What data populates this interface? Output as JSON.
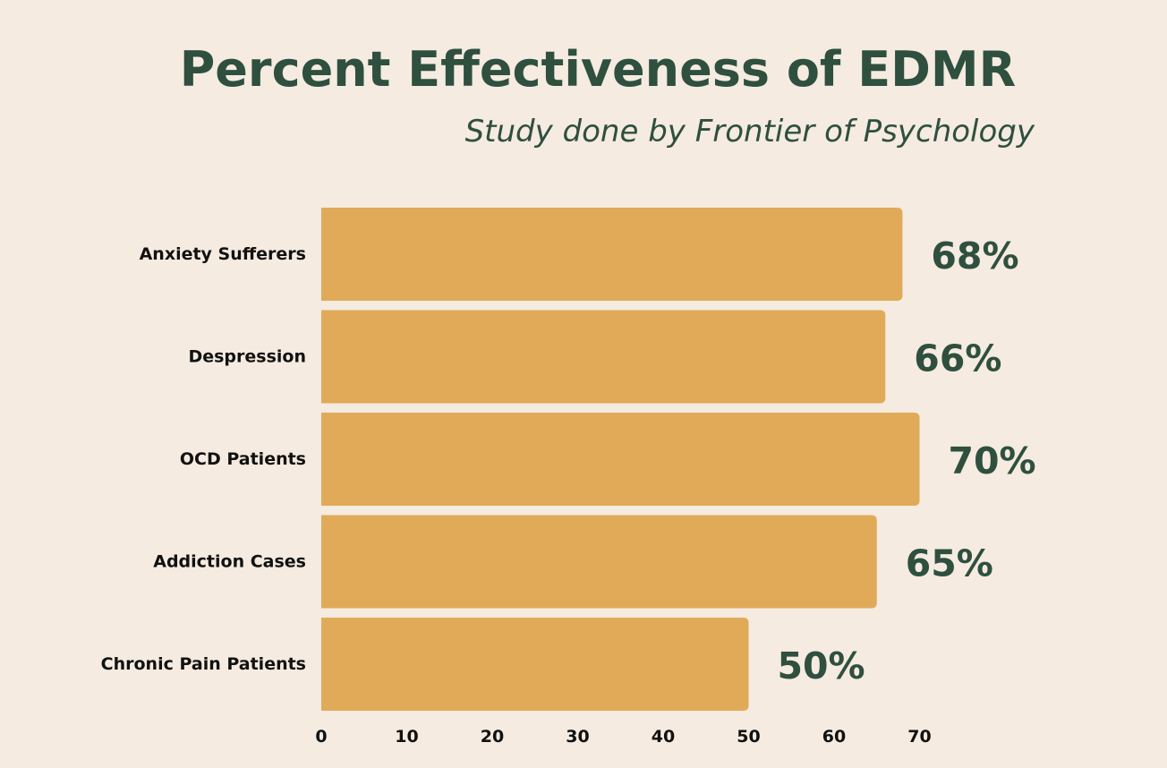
{
  "colors": {
    "background": "#f5ebe0",
    "bar": "#e0aa58",
    "title": "#2f4f3f",
    "value_label": "#2f4f3f",
    "category_label": "#111111",
    "tick_label": "#111111"
  },
  "chart_data": {
    "type": "bar",
    "orientation": "horizontal",
    "title": "Percent Effectiveness of EDMR",
    "subtitle": "Study done by Frontier of Psychology",
    "xlabel": "",
    "ylabel": "",
    "categories": [
      "Anxiety Sufferers",
      "Despression",
      "OCD Patients",
      "Addiction Cases",
      "Chronic Pain Patients"
    ],
    "values": [
      68,
      66,
      70,
      65,
      50
    ],
    "value_labels": [
      "68%",
      "66%",
      "70%",
      "65%",
      "50%"
    ],
    "xlim": [
      0,
      70
    ],
    "xticks": [
      0,
      10,
      20,
      30,
      40,
      50,
      60,
      70
    ],
    "grid": false,
    "legend": "none"
  }
}
